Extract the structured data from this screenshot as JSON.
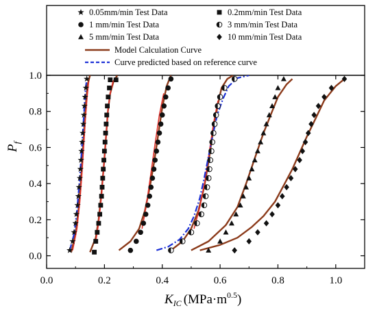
{
  "chart_data": {
    "type": "scatter",
    "xlabel_main": "K",
    "xlabel_sub": "IC",
    "xlabel_unit": "(MPa·m",
    "xlabel_sup": "0.5",
    "xlabel_close": ")",
    "ylabel_main": "P",
    "ylabel_sub": "f",
    "xlim": [
      0.0,
      1.1
    ],
    "ylim": [
      -0.07,
      1.0
    ],
    "x_ticks": [
      "0.0",
      "0.2",
      "0.4",
      "0.6",
      "0.8",
      "1.0"
    ],
    "y_ticks": [
      "0.0",
      "0.2",
      "0.4",
      "0.6",
      "0.8",
      "1.0"
    ],
    "grid": false,
    "legend_position": "top",
    "colors": {
      "model_curve": "#8B3A1A",
      "red_curve": "#E0302A",
      "predicted_curve": "#1A2FD6",
      "markers": "#111111"
    },
    "legend": {
      "s005": "0.05mm/min Test Data",
      "s02": "0.2mm/min Test Data",
      "s1": "1   mm/min Test Data",
      "s3": "3   mm/min Test Data",
      "s5": "5   mm/min Test Data",
      "s10": "10 mm/min Test Data",
      "model": "Model Calculation Curve",
      "predicted": "Curve predicted based on reference curve"
    },
    "test_data": [
      {
        "key": "s005",
        "marker": "star",
        "x": [
          0.08,
          0.09,
          0.095,
          0.1,
          0.103,
          0.107,
          0.11,
          0.112,
          0.115,
          0.117,
          0.119,
          0.121,
          0.123,
          0.125,
          0.127,
          0.129,
          0.131,
          0.133,
          0.136,
          0.139
        ],
        "y": [
          0.03,
          0.08,
          0.13,
          0.18,
          0.23,
          0.28,
          0.33,
          0.38,
          0.43,
          0.48,
          0.53,
          0.58,
          0.63,
          0.68,
          0.73,
          0.78,
          0.83,
          0.88,
          0.93,
          0.98
        ]
      },
      {
        "key": "s02",
        "marker": "square",
        "x": [
          0.165,
          0.17,
          0.175,
          0.18,
          0.184,
          0.187,
          0.19,
          0.192,
          0.194,
          0.196,
          0.198,
          0.2,
          0.202,
          0.204,
          0.206,
          0.208,
          0.21,
          0.213,
          0.217,
          0.22,
          0.24
        ],
        "y": [
          0.02,
          0.08,
          0.13,
          0.18,
          0.23,
          0.28,
          0.33,
          0.38,
          0.43,
          0.48,
          0.53,
          0.58,
          0.63,
          0.68,
          0.73,
          0.78,
          0.83,
          0.88,
          0.93,
          0.975,
          0.975
        ]
      },
      {
        "key": "s1",
        "marker": "circle",
        "x": [
          0.29,
          0.31,
          0.325,
          0.335,
          0.343,
          0.35,
          0.356,
          0.361,
          0.366,
          0.371,
          0.375,
          0.38,
          0.385,
          0.39,
          0.395,
          0.4,
          0.406,
          0.412,
          0.42,
          0.43
        ],
        "y": [
          0.03,
          0.08,
          0.13,
          0.18,
          0.23,
          0.28,
          0.33,
          0.38,
          0.43,
          0.48,
          0.53,
          0.58,
          0.63,
          0.68,
          0.73,
          0.78,
          0.83,
          0.88,
          0.93,
          0.98
        ]
      },
      {
        "key": "s3",
        "marker": "half",
        "x": [
          0.43,
          0.47,
          0.5,
          0.52,
          0.535,
          0.545,
          0.55,
          0.555,
          0.56,
          0.563,
          0.566,
          0.57,
          0.573,
          0.577,
          0.581,
          0.586,
          0.592,
          0.6,
          0.615,
          0.65
        ],
        "y": [
          0.03,
          0.08,
          0.13,
          0.18,
          0.23,
          0.28,
          0.33,
          0.38,
          0.43,
          0.48,
          0.53,
          0.58,
          0.63,
          0.68,
          0.73,
          0.78,
          0.83,
          0.88,
          0.93,
          0.98
        ]
      },
      {
        "key": "s5",
        "marker": "triangle",
        "x": [
          0.56,
          0.6,
          0.62,
          0.64,
          0.655,
          0.67,
          0.68,
          0.69,
          0.7,
          0.71,
          0.72,
          0.73,
          0.74,
          0.75,
          0.76,
          0.77,
          0.78,
          0.79,
          0.8,
          0.82
        ],
        "y": [
          0.03,
          0.08,
          0.13,
          0.18,
          0.23,
          0.28,
          0.33,
          0.38,
          0.43,
          0.48,
          0.53,
          0.58,
          0.63,
          0.68,
          0.73,
          0.78,
          0.83,
          0.88,
          0.93,
          0.98
        ]
      },
      {
        "key": "s10",
        "marker": "diamond",
        "x": [
          0.65,
          0.7,
          0.73,
          0.76,
          0.78,
          0.8,
          0.815,
          0.83,
          0.845,
          0.86,
          0.875,
          0.885,
          0.895,
          0.905,
          0.915,
          0.925,
          0.94,
          0.96,
          0.985,
          1.03
        ],
        "y": [
          0.03,
          0.08,
          0.13,
          0.18,
          0.23,
          0.28,
          0.33,
          0.38,
          0.43,
          0.48,
          0.53,
          0.58,
          0.63,
          0.68,
          0.73,
          0.78,
          0.83,
          0.88,
          0.93,
          0.98
        ]
      }
    ],
    "model_curves": [
      {
        "x": [
          0.085,
          0.1,
          0.11,
          0.118,
          0.124,
          0.13,
          0.136,
          0.142,
          0.15
        ],
        "y": [
          0.02,
          0.12,
          0.25,
          0.4,
          0.55,
          0.7,
          0.85,
          0.95,
          1.0
        ]
      },
      {
        "x": [
          0.15,
          0.17,
          0.18,
          0.19,
          0.198,
          0.205,
          0.212,
          0.22,
          0.232,
          0.245
        ],
        "y": [
          0.02,
          0.1,
          0.2,
          0.35,
          0.5,
          0.65,
          0.8,
          0.9,
          0.97,
          1.0
        ]
      },
      {
        "x": [
          0.25,
          0.29,
          0.32,
          0.34,
          0.357,
          0.372,
          0.387,
          0.4,
          0.415,
          0.43
        ],
        "y": [
          0.03,
          0.08,
          0.15,
          0.25,
          0.38,
          0.52,
          0.68,
          0.82,
          0.94,
          1.0
        ]
      },
      {
        "x": [
          0.43,
          0.47,
          0.5,
          0.525,
          0.545,
          0.56,
          0.575,
          0.59,
          0.605,
          0.625,
          0.645
        ],
        "y": [
          0.03,
          0.08,
          0.15,
          0.25,
          0.38,
          0.52,
          0.68,
          0.82,
          0.93,
          0.98,
          1.0
        ]
      },
      {
        "x": [
          0.5,
          0.56,
          0.62,
          0.66,
          0.69,
          0.72,
          0.75,
          0.78,
          0.8,
          0.83,
          0.85
        ],
        "y": [
          0.03,
          0.08,
          0.17,
          0.27,
          0.4,
          0.54,
          0.68,
          0.8,
          0.88,
          0.95,
          0.98
        ]
      },
      {
        "x": [
          0.53,
          0.6,
          0.66,
          0.71,
          0.75,
          0.79,
          0.82,
          0.85,
          0.875,
          0.9,
          0.93,
          0.96,
          1.0,
          1.03
        ],
        "y": [
          0.03,
          0.06,
          0.1,
          0.16,
          0.22,
          0.3,
          0.39,
          0.48,
          0.57,
          0.66,
          0.76,
          0.86,
          0.94,
          0.98
        ]
      }
    ],
    "red_curves": [
      {
        "x": [
          0.09,
          0.105,
          0.115,
          0.122,
          0.128,
          0.134,
          0.14,
          0.146
        ],
        "y": [
          0.03,
          0.15,
          0.3,
          0.45,
          0.6,
          0.75,
          0.88,
          0.97
        ]
      },
      {
        "x": [
          0.17,
          0.18,
          0.19,
          0.198,
          0.205,
          0.212,
          0.22,
          0.23
        ],
        "y": [
          0.08,
          0.18,
          0.33,
          0.5,
          0.65,
          0.8,
          0.9,
          0.97
        ]
      },
      {
        "x": [
          0.33,
          0.345,
          0.36,
          0.375,
          0.39,
          0.405
        ],
        "y": [
          0.15,
          0.28,
          0.45,
          0.62,
          0.78,
          0.9
        ]
      },
      {
        "x": [
          0.51,
          0.53,
          0.548,
          0.563,
          0.578,
          0.593
        ],
        "y": [
          0.15,
          0.27,
          0.42,
          0.58,
          0.74,
          0.86
        ]
      }
    ],
    "predicted_curves": [
      {
        "x": [
          0.08,
          0.095,
          0.105,
          0.113,
          0.12,
          0.126,
          0.131,
          0.135,
          0.14
        ],
        "y": [
          0.03,
          0.12,
          0.25,
          0.4,
          0.55,
          0.7,
          0.84,
          0.93,
          0.99
        ]
      },
      {
        "x": [
          0.38,
          0.42,
          0.46,
          0.49,
          0.51,
          0.53,
          0.545,
          0.56,
          0.575,
          0.59,
          0.61,
          0.63,
          0.66,
          0.7
        ],
        "y": [
          0.03,
          0.05,
          0.09,
          0.15,
          0.22,
          0.32,
          0.43,
          0.55,
          0.67,
          0.78,
          0.87,
          0.94,
          0.985,
          1.0
        ]
      }
    ]
  }
}
